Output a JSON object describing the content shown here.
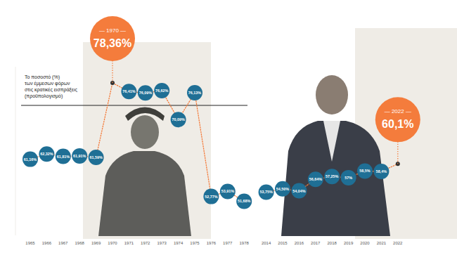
{
  "chart_data": {
    "type": "line",
    "title": "Το ποσοστό (%)\nτων έμμεσων φόρων\nστις κρατικές εισπράξεις\n(προϋπολογισμό)",
    "categories": [
      "1965",
      "1966",
      "1967",
      "1968",
      "1969",
      "1970",
      "1971",
      "1972",
      "1973",
      "1974",
      "1975",
      "1976",
      "1977",
      "1978",
      "2014",
      "2015",
      "2016",
      "2017",
      "2018",
      "2019",
      "2020",
      "2021",
      "2022"
    ],
    "values": [
      61.16,
      62.32,
      61.81,
      61.91,
      61.59,
      78.36,
      76.41,
      76.09,
      76.62,
      70.09,
      76.13,
      52.77,
      53.91,
      51.68,
      53.75,
      54.5,
      54.04,
      56.64,
      57.25,
      57,
      58.5,
      58.4,
      60.1
    ],
    "value_labels": [
      "61,16%",
      "62,32%",
      "61,81%",
      "61,91%",
      "61,59%",
      "78,36%",
      "76,41%",
      "76,09%",
      "76,62%",
      "70,09%",
      "76,13%",
      "52,77%",
      "53,91%",
      "51,68%",
      "53,75%",
      "54,50%",
      "54,04%",
      "56,64%",
      "57,25%",
      "57%",
      "58,5%",
      "58,4%",
      "60,1%"
    ],
    "ylim": [
      44,
      82
    ],
    "yticks": [],
    "tick_labels": "x",
    "data_labels": true,
    "color": "#1f6f95",
    "marker": "circle",
    "line_style": "dotted",
    "annotations": [
      {
        "x": "1970",
        "label": "— 1970 —"
      },
      {
        "x": "2022",
        "label": "— 2022 —"
      }
    ]
  }
}
